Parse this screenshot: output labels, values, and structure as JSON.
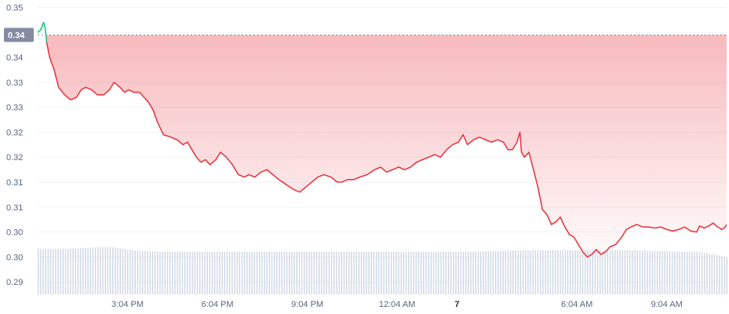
{
  "chart_data": {
    "type": "area",
    "y_ticks": [
      "0.35",
      "0.34",
      "0.34",
      "0.33",
      "0.33",
      "0.32",
      "0.32",
      "0.31",
      "0.31",
      "0.30",
      "0.30",
      "0.29"
    ],
    "y_tick_values": [
      0.35,
      0.345,
      0.34,
      0.335,
      0.33,
      0.325,
      0.32,
      0.315,
      0.31,
      0.305,
      0.3,
      0.295
    ],
    "x_ticks": [
      {
        "label": "3:04 PM",
        "t": 3.0,
        "bold": false
      },
      {
        "label": "6:04 PM",
        "t": 6.0,
        "bold": false
      },
      {
        "label": "9:04 PM",
        "t": 9.0,
        "bold": false
      },
      {
        "label": "12:04 AM",
        "t": 12.0,
        "bold": false
      },
      {
        "label": "7",
        "t": 14.0,
        "bold": true
      },
      {
        "label": "6:04 AM",
        "t": 18.0,
        "bold": false
      },
      {
        "label": "9:04 AM",
        "t": 21.0,
        "bold": false
      }
    ],
    "current_price": "0.34",
    "current_price_value": 0.3445,
    "ylim": [
      0.2925,
      0.3515
    ],
    "xlim": [
      0.0,
      23.0
    ],
    "colors": {
      "line_down": "#ea3943",
      "line_up": "#16c784",
      "fill": "#ea3943",
      "volume": "#cfd6e4",
      "tag": "#858ca2"
    },
    "price_series": [
      [
        0.0,
        0.345
      ],
      [
        0.1,
        0.3455
      ],
      [
        0.2,
        0.347
      ],
      [
        0.25,
        0.346
      ],
      [
        0.3,
        0.343
      ],
      [
        0.4,
        0.34
      ],
      [
        0.55,
        0.3375
      ],
      [
        0.7,
        0.334
      ],
      [
        0.9,
        0.3325
      ],
      [
        1.1,
        0.3315
      ],
      [
        1.3,
        0.332
      ],
      [
        1.45,
        0.3335
      ],
      [
        1.6,
        0.334
      ],
      [
        1.8,
        0.3335
      ],
      [
        2.0,
        0.3325
      ],
      [
        2.2,
        0.3325
      ],
      [
        2.4,
        0.3335
      ],
      [
        2.55,
        0.335
      ],
      [
        2.75,
        0.334
      ],
      [
        2.9,
        0.333
      ],
      [
        3.05,
        0.3335
      ],
      [
        3.2,
        0.333
      ],
      [
        3.4,
        0.333
      ],
      [
        3.55,
        0.332
      ],
      [
        3.7,
        0.331
      ],
      [
        3.85,
        0.3295
      ],
      [
        4.0,
        0.327
      ],
      [
        4.2,
        0.3245
      ],
      [
        4.45,
        0.324
      ],
      [
        4.65,
        0.3235
      ],
      [
        4.85,
        0.3225
      ],
      [
        5.0,
        0.323
      ],
      [
        5.15,
        0.3215
      ],
      [
        5.3,
        0.32
      ],
      [
        5.45,
        0.319
      ],
      [
        5.6,
        0.3195
      ],
      [
        5.75,
        0.3185
      ],
      [
        5.95,
        0.3195
      ],
      [
        6.1,
        0.321
      ],
      [
        6.3,
        0.32
      ],
      [
        6.5,
        0.3185
      ],
      [
        6.7,
        0.3165
      ],
      [
        6.9,
        0.316
      ],
      [
        7.05,
        0.3165
      ],
      [
        7.25,
        0.316
      ],
      [
        7.45,
        0.317
      ],
      [
        7.65,
        0.3175
      ],
      [
        7.85,
        0.3165
      ],
      [
        8.05,
        0.3155
      ],
      [
        8.3,
        0.3145
      ],
      [
        8.55,
        0.3135
      ],
      [
        8.75,
        0.313
      ],
      [
        8.95,
        0.314
      ],
      [
        9.15,
        0.315
      ],
      [
        9.35,
        0.316
      ],
      [
        9.55,
        0.3165
      ],
      [
        9.8,
        0.316
      ],
      [
        10.0,
        0.315
      ],
      [
        10.15,
        0.315
      ],
      [
        10.35,
        0.3155
      ],
      [
        10.55,
        0.3155
      ],
      [
        10.75,
        0.316
      ],
      [
        11.0,
        0.3165
      ],
      [
        11.25,
        0.3175
      ],
      [
        11.45,
        0.318
      ],
      [
        11.65,
        0.317
      ],
      [
        11.85,
        0.3175
      ],
      [
        12.05,
        0.318
      ],
      [
        12.25,
        0.3175
      ],
      [
        12.45,
        0.318
      ],
      [
        12.65,
        0.319
      ],
      [
        12.85,
        0.3195
      ],
      [
        13.05,
        0.32
      ],
      [
        13.25,
        0.3205
      ],
      [
        13.45,
        0.32
      ],
      [
        13.65,
        0.3215
      ],
      [
        13.85,
        0.3225
      ],
      [
        14.05,
        0.323
      ],
      [
        14.2,
        0.3245
      ],
      [
        14.35,
        0.3225
      ],
      [
        14.55,
        0.3235
      ],
      [
        14.75,
        0.324
      ],
      [
        14.95,
        0.3235
      ],
      [
        15.15,
        0.323
      ],
      [
        15.35,
        0.3235
      ],
      [
        15.55,
        0.323
      ],
      [
        15.7,
        0.3215
      ],
      [
        15.85,
        0.3215
      ],
      [
        16.0,
        0.323
      ],
      [
        16.1,
        0.325
      ],
      [
        16.15,
        0.321
      ],
      [
        16.25,
        0.32
      ],
      [
        16.4,
        0.321
      ],
      [
        16.55,
        0.3175
      ],
      [
        16.7,
        0.314
      ],
      [
        16.85,
        0.3095
      ],
      [
        17.0,
        0.3085
      ],
      [
        17.15,
        0.3065
      ],
      [
        17.3,
        0.307
      ],
      [
        17.45,
        0.308
      ],
      [
        17.6,
        0.306
      ],
      [
        17.75,
        0.3045
      ],
      [
        17.9,
        0.304
      ],
      [
        18.05,
        0.3025
      ],
      [
        18.2,
        0.301
      ],
      [
        18.35,
        0.3
      ],
      [
        18.5,
        0.3005
      ],
      [
        18.65,
        0.3015
      ],
      [
        18.8,
        0.3005
      ],
      [
        18.95,
        0.301
      ],
      [
        19.1,
        0.302
      ],
      [
        19.3,
        0.3025
      ],
      [
        19.5,
        0.304
      ],
      [
        19.65,
        0.3055
      ],
      [
        19.8,
        0.306
      ],
      [
        20.0,
        0.3065
      ],
      [
        20.2,
        0.306
      ],
      [
        20.4,
        0.306
      ],
      [
        20.6,
        0.3058
      ],
      [
        20.8,
        0.306
      ],
      [
        21.0,
        0.3055
      ],
      [
        21.2,
        0.3052
      ],
      [
        21.4,
        0.3055
      ],
      [
        21.6,
        0.306
      ],
      [
        21.8,
        0.3052
      ],
      [
        22.0,
        0.305
      ],
      [
        22.1,
        0.3062
      ],
      [
        22.25,
        0.3058
      ],
      [
        22.4,
        0.3062
      ],
      [
        22.55,
        0.3068
      ],
      [
        22.7,
        0.306
      ],
      [
        22.85,
        0.3055
      ],
      [
        22.95,
        0.306
      ],
      [
        23.0,
        0.3065
      ]
    ],
    "volume_series": [
      [
        0.0,
        0.031
      ],
      [
        1.0,
        0.031
      ],
      [
        2.0,
        0.032
      ],
      [
        2.5,
        0.032
      ],
      [
        3.2,
        0.03
      ],
      [
        4.0,
        0.029
      ],
      [
        8.0,
        0.029
      ],
      [
        13.0,
        0.029
      ],
      [
        14.5,
        0.029
      ],
      [
        16.0,
        0.03
      ],
      [
        18.0,
        0.03
      ],
      [
        20.0,
        0.03
      ],
      [
        21.5,
        0.029
      ],
      [
        22.0,
        0.029
      ],
      [
        22.6,
        0.027
      ],
      [
        23.0,
        0.025
      ]
    ],
    "volume_max": 0.04
  }
}
